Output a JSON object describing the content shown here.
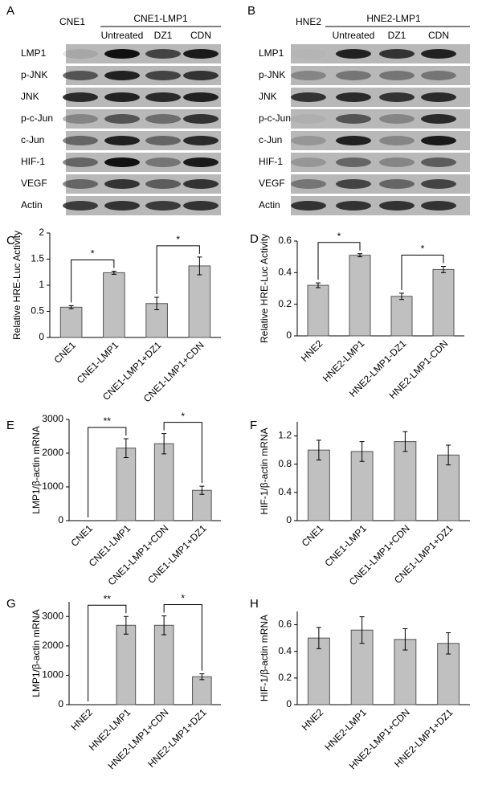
{
  "blots": [
    {
      "label": "A",
      "control": "CNE1",
      "group": "CNE1-LMP1",
      "lanes": [
        "Untreated",
        "DZ1",
        "CDN"
      ],
      "rows": [
        "LMP1",
        "p-JNK",
        "JNK",
        "p-c-Jun",
        "c-Jun",
        "HIF-1",
        "VEGF",
        "Actin"
      ]
    },
    {
      "label": "B",
      "control": "HNE2",
      "group": "HNE2-LMP1",
      "lanes": [
        "Untreated",
        "DZ1",
        "CDN"
      ],
      "rows": [
        "LMP1",
        "p-JNK",
        "JNK",
        "p-c-Jun",
        "c-Jun",
        "HIF-1",
        "VEGF",
        "Actin"
      ]
    }
  ],
  "chart_data": [
    {
      "type": "bar",
      "panel": "C",
      "y_label": "Relative HRE-Luc Activity",
      "categories": [
        "CNE1",
        "CNE1-LMP1",
        "CNE1-LMP1+DZ1",
        "CNE1-LMP1+CDN"
      ],
      "values": [
        0.58,
        1.24,
        0.65,
        1.37
      ],
      "errors": [
        0.03,
        0.03,
        0.12,
        0.17
      ],
      "color": "#c0c0c0",
      "ylim": [
        0,
        2
      ],
      "yticks": [
        0,
        0.5,
        1,
        1.5,
        2
      ],
      "annotations": [
        "*",
        "*"
      ]
    },
    {
      "type": "bar",
      "panel": "D",
      "y_label": "Relative HRE-Luc Activity",
      "categories": [
        "HNE2",
        "HNE2-LMP1",
        "HNE2-LMP1-DZ1",
        "HNE2-LMP1-CDN"
      ],
      "values": [
        0.32,
        0.51,
        0.25,
        0.42
      ],
      "errors": [
        0.015,
        0.01,
        0.02,
        0.02
      ],
      "color": "#c0c0c0",
      "ylim": [
        0,
        0.6
      ],
      "yticks": [
        0,
        0.2,
        0.4,
        0.6
      ],
      "annotations": [
        "*",
        "*"
      ]
    },
    {
      "type": "bar",
      "panel": "E",
      "y_label": "LMP1/β-actin mRNA",
      "categories": [
        "CNE1",
        "CNE1-LMP1",
        "CNE1-LMP1+CDN",
        "CNE1-LMP1+DZ1"
      ],
      "values": [
        0,
        2150,
        2280,
        900
      ],
      "errors": [
        0,
        280,
        300,
        120
      ],
      "color": "#c0c0c0",
      "ylim": [
        0,
        3000
      ],
      "yticks": [
        0,
        1000,
        2000,
        3000
      ],
      "annotations": [
        "**",
        "*"
      ]
    },
    {
      "type": "bar",
      "panel": "F",
      "y_label": "HIF-1/β-actin mRNA",
      "categories": [
        "CNE1",
        "CNE1-LMP1",
        "CNE1-LMP1+CDN",
        "CNE1-LMP1+DZ1"
      ],
      "values": [
        1.0,
        0.98,
        1.12,
        0.93
      ],
      "errors": [
        0.14,
        0.14,
        0.14,
        0.14
      ],
      "color": "#c0c0c0",
      "ylim": [
        0,
        1.4
      ],
      "yticks": [
        0,
        0.4,
        0.8,
        1.2
      ]
    },
    {
      "type": "bar",
      "panel": "G",
      "y_label": "LMP1/β-actin mRNA",
      "categories": [
        "HNE2",
        "HNE2-LMP1",
        "HNE2-LMP1+CDN",
        "HNE2-LMP1+DZ1"
      ],
      "values": [
        0,
        2700,
        2700,
        950
      ],
      "errors": [
        0,
        300,
        320,
        100
      ],
      "color": "#c0c0c0",
      "ylim": [
        0,
        3500
      ],
      "yticks": [
        0,
        1000,
        2000,
        3000
      ],
      "annotations": [
        "**",
        "*"
      ]
    },
    {
      "type": "bar",
      "panel": "H",
      "y_label": "HIF-1/β-actin mRNA",
      "categories": [
        "HNE2",
        "HNE2-LMP1",
        "HNE2-LMP1+CDN",
        "HNE2-LMP1+DZ1"
      ],
      "values": [
        0.5,
        0.56,
        0.49,
        0.46
      ],
      "errors": [
        0.08,
        0.1,
        0.08,
        0.08
      ],
      "color": "#c0c0c0",
      "ylim": [
        0,
        0.7
      ],
      "yticks": [
        0,
        0.2,
        0.4,
        0.6
      ]
    }
  ]
}
